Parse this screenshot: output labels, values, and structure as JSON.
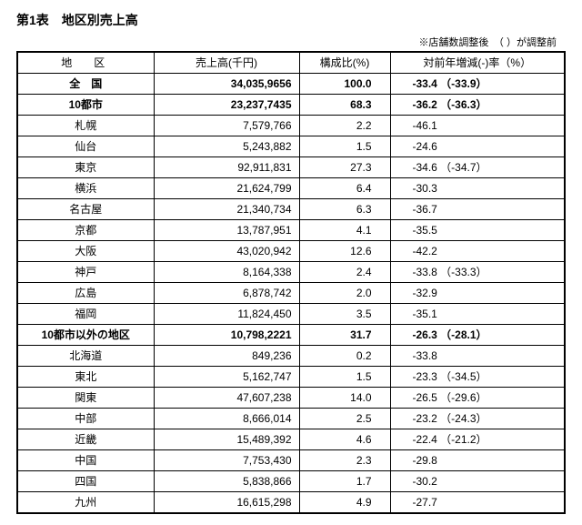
{
  "title": "第1表　地区別売上高",
  "note": "※店舗数調整後　（ ）が調整前",
  "columns": [
    "地区",
    "売上高(千円)",
    "構成比(%)",
    "対前年増減(-)率（%）"
  ],
  "rows": [
    {
      "region": "全　国",
      "sales": "34,035,9656",
      "share": "100.0",
      "yoy": "-33.4 （-33.9）",
      "bold": true
    },
    {
      "region": "10都市",
      "sales": "23,237,7435",
      "share": "68.3",
      "yoy": "-36.2 （-36.3）",
      "bold": true
    },
    {
      "region": "札幌",
      "sales": "7,579,766",
      "share": "2.2",
      "yoy": "-46.1"
    },
    {
      "region": "仙台",
      "sales": "5,243,882",
      "share": "1.5",
      "yoy": "-24.6"
    },
    {
      "region": "東京",
      "sales": "92,911,831",
      "share": "27.3",
      "yoy": "-34.6 （-34.7）"
    },
    {
      "region": "横浜",
      "sales": "21,624,799",
      "share": "6.4",
      "yoy": "-30.3"
    },
    {
      "region": "名古屋",
      "sales": "21,340,734",
      "share": "6.3",
      "yoy": "-36.7"
    },
    {
      "region": "京都",
      "sales": "13,787,951",
      "share": "4.1",
      "yoy": "-35.5"
    },
    {
      "region": "大阪",
      "sales": "43,020,942",
      "share": "12.6",
      "yoy": "-42.2"
    },
    {
      "region": "神戸",
      "sales": "8,164,338",
      "share": "2.4",
      "yoy": "-33.8 （-33.3）"
    },
    {
      "region": "広島",
      "sales": "6,878,742",
      "share": "2.0",
      "yoy": "-32.9"
    },
    {
      "region": "福岡",
      "sales": "11,824,450",
      "share": "3.5",
      "yoy": "-35.1"
    },
    {
      "region": "10都市以外の地区",
      "sales": "10,798,2221",
      "share": "31.7",
      "yoy": "-26.3 （-28.1）",
      "bold": true
    },
    {
      "region": "北海道",
      "sales": "849,236",
      "share": "0.2",
      "yoy": "-33.8"
    },
    {
      "region": "東北",
      "sales": "5,162,747",
      "share": "1.5",
      "yoy": "-23.3 （-34.5）"
    },
    {
      "region": "関東",
      "sales": "47,607,238",
      "share": "14.0",
      "yoy": "-26.5 （-29.6）"
    },
    {
      "region": "中部",
      "sales": "8,666,014",
      "share": "2.5",
      "yoy": "-23.2 （-24.3）"
    },
    {
      "region": "近畿",
      "sales": "15,489,392",
      "share": "4.6",
      "yoy": "-22.4 （-21.2）"
    },
    {
      "region": "中国",
      "sales": "7,753,430",
      "share": "2.3",
      "yoy": "-29.8"
    },
    {
      "region": "四国",
      "sales": "5,838,866",
      "share": "1.7",
      "yoy": "-30.2"
    },
    {
      "region": "九州",
      "sales": "16,615,298",
      "share": "4.9",
      "yoy": "-27.7"
    }
  ]
}
